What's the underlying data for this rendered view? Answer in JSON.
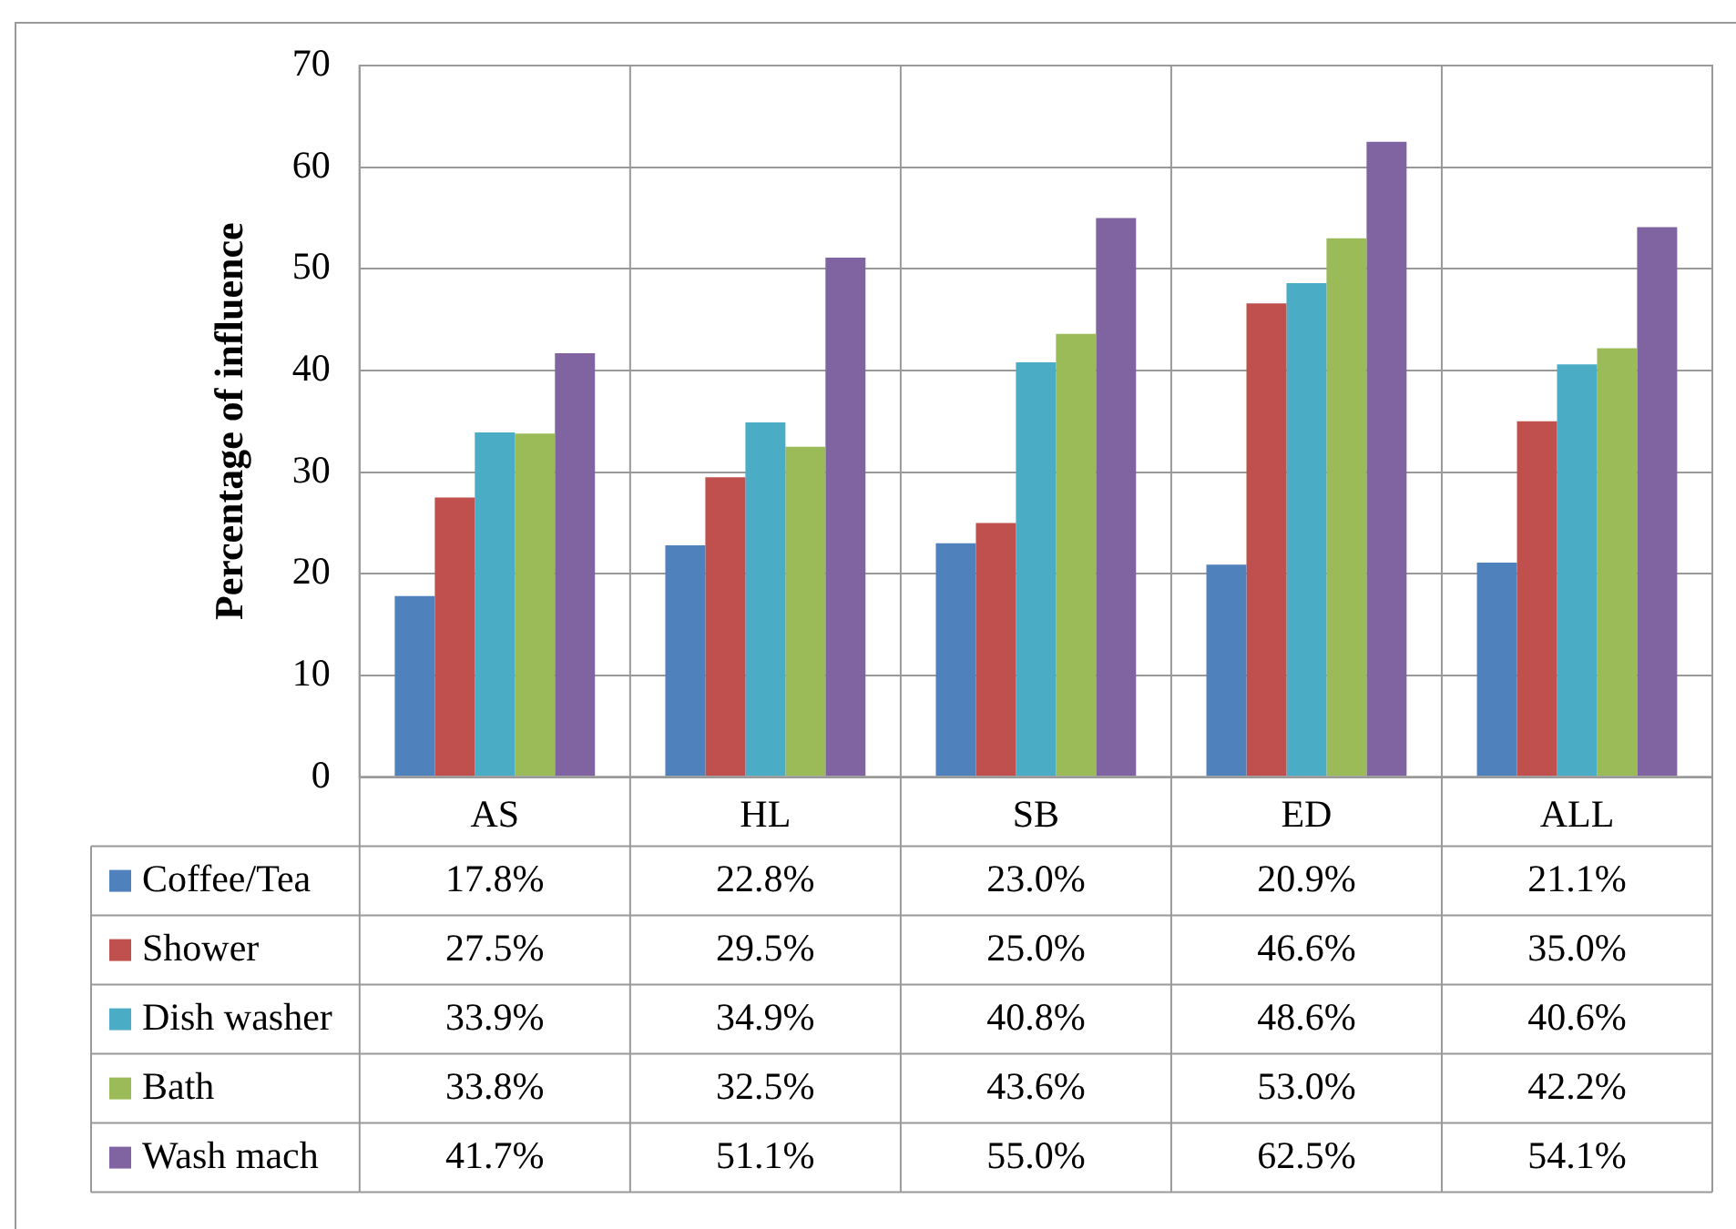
{
  "chart_data": {
    "type": "bar",
    "ylabel": "Percentage of influence",
    "categories": [
      "AS",
      "HL",
      "SB",
      "ED",
      "ALL"
    ],
    "series": [
      {
        "name": "Coffee/Tea",
        "color": "#4f81bd",
        "values": [
          17.8,
          22.8,
          23.0,
          20.9,
          21.1
        ],
        "value_labels": [
          "17.8%",
          "22.8%",
          "23.0%",
          "20.9%",
          "21.1%"
        ]
      },
      {
        "name": "Shower",
        "color": "#c0504d",
        "values": [
          27.5,
          29.5,
          25.0,
          46.6,
          35.0
        ],
        "value_labels": [
          "27.5%",
          "29.5%",
          "25.0%",
          "46.6%",
          "35.0%"
        ]
      },
      {
        "name": "Dish washer",
        "color": "#4bacc6",
        "values": [
          33.9,
          34.9,
          40.8,
          48.6,
          40.6
        ],
        "value_labels": [
          "33.9%",
          "34.9%",
          "40.8%",
          "48.6%",
          "40.6%"
        ]
      },
      {
        "name": "Bath",
        "color": "#9bbb59",
        "values": [
          33.8,
          32.5,
          43.6,
          53.0,
          42.2
        ],
        "value_labels": [
          "33.8%",
          "32.5%",
          "43.6%",
          "53.0%",
          "42.2%"
        ]
      },
      {
        "name": "Wash mach",
        "color": "#8064a2",
        "values": [
          41.7,
          51.1,
          55.0,
          62.5,
          54.1
        ],
        "value_labels": [
          "41.7%",
          "51.1%",
          "55.0%",
          "62.5%",
          "54.1%"
        ]
      }
    ],
    "ylim": [
      0,
      70
    ],
    "yticks": [
      0,
      10,
      20,
      30,
      40,
      50,
      60,
      70
    ],
    "grid": "y",
    "legend": "bottom"
  }
}
